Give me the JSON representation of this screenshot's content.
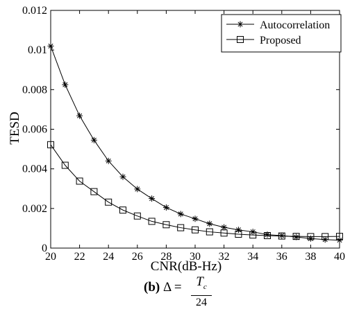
{
  "chart_data": {
    "type": "line",
    "xlabel": "CNR(dB-Hz)",
    "ylabel": "TESD",
    "xlim": [
      20,
      40
    ],
    "ylim": [
      0,
      0.012
    ],
    "x_ticks": [
      "20",
      "22",
      "24",
      "26",
      "28",
      "30",
      "32",
      "34",
      "36",
      "38",
      "40"
    ],
    "y_ticks": [
      "0",
      "0.002",
      "0.004",
      "0.006",
      "0.008",
      "0.01",
      "0.012"
    ],
    "grid": false,
    "legend_position": "top-right",
    "x": [
      20,
      21,
      22,
      23,
      24,
      25,
      26,
      27,
      28,
      29,
      30,
      31,
      32,
      33,
      34,
      35,
      36,
      37,
      38,
      39,
      40
    ],
    "series": [
      {
        "name": "Autocorrelation",
        "marker": "asterisk",
        "values": [
          0.0102,
          0.00825,
          0.00668,
          0.00545,
          0.0044,
          0.0036,
          0.00298,
          0.0025,
          0.00205,
          0.00172,
          0.00148,
          0.00123,
          0.00105,
          0.00092,
          0.00082,
          0.00068,
          0.00063,
          0.00056,
          0.00048,
          0.00043,
          0.0004
        ]
      },
      {
        "name": "Proposed",
        "marker": "square",
        "values": [
          0.00522,
          0.00418,
          0.00338,
          0.00285,
          0.00232,
          0.00192,
          0.00162,
          0.00135,
          0.00118,
          0.00103,
          0.00092,
          0.00082,
          0.00076,
          0.0007,
          0.00066,
          0.00063,
          0.00061,
          0.00059,
          0.00058,
          0.00058,
          0.00059
        ]
      }
    ]
  },
  "caption": {
    "label": "(b)",
    "delta": "Δ =",
    "numerator": "T",
    "numerator_sub": "c",
    "denominator": "24"
  }
}
